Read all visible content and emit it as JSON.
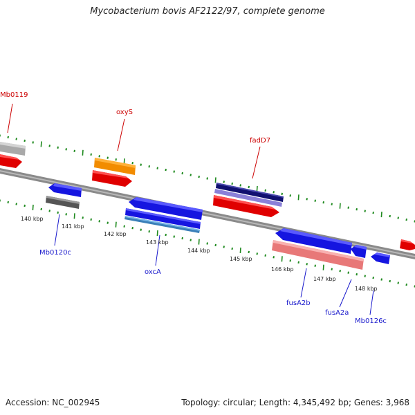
{
  "title": "Mycobacterium bovis AF2122/97, complete genome",
  "footer": {
    "accession": "Accession: NC_002945",
    "summary": "Topology: circular; Length: 4,345,492 bp; Genes: 3,968"
  },
  "colors": {
    "backbone": "#8a8a8a",
    "tick": "#1f8a1f",
    "forward_label": "#cc0000",
    "reverse_label": "#1a1acc",
    "scale_label": "#222222"
  },
  "scale_labels": [
    "140 kbp",
    "141 kbp",
    "142 kbp",
    "143 kbp",
    "144 kbp",
    "145 kbp",
    "146 kbp",
    "147 kbp",
    "148 kbp"
  ],
  "gene_labels": {
    "mb0119": "Mb0119",
    "oxys": "oxyS",
    "fadd7": "fadD7",
    "mb0120c": "Mb0120c",
    "oxca": "oxcA",
    "fusa2b": "fusA2b",
    "fusa2a": "fusA2a",
    "mb0126c": "Mb0126c"
  }
}
